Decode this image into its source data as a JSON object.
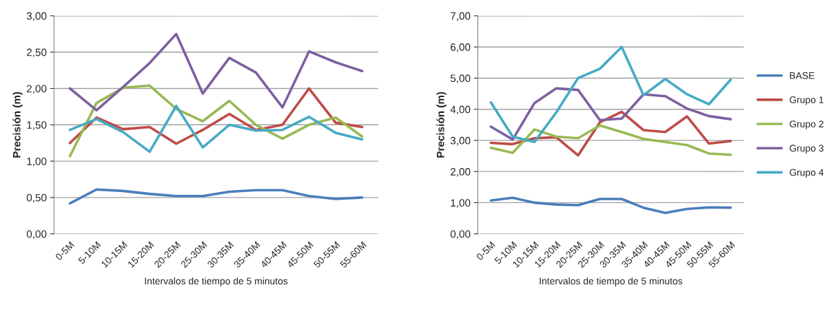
{
  "chart_data": [
    {
      "type": "line",
      "xlabel": "Intervalos de tiempo de 5 minutos",
      "ylabel": "Precisión (m)",
      "categories": [
        "0-5M",
        "5-10M",
        "10-15M",
        "15-20M",
        "20-25M",
        "25-30M",
        "30-35M",
        "35-40M",
        "40-45M",
        "45-50M",
        "50-55M",
        "55-60M"
      ],
      "series": [
        {
          "color": "#4a7ebb",
          "values": [
            0.42,
            0.61,
            0.59,
            0.55,
            0.52,
            0.52,
            0.58,
            0.6,
            0.6,
            0.52,
            0.48,
            0.5
          ]
        },
        {
          "color": "#be4b48",
          "values": [
            1.25,
            1.6,
            1.44,
            1.47,
            1.24,
            1.43,
            1.65,
            1.43,
            1.5,
            2.0,
            1.53,
            1.47
          ]
        },
        {
          "color": "#98b954",
          "values": [
            1.07,
            1.8,
            2.01,
            2.04,
            1.72,
            1.55,
            1.83,
            1.5,
            1.31,
            1.5,
            1.6,
            1.34
          ]
        },
        {
          "color": "#7d60a0",
          "values": [
            2.0,
            1.7,
            2.02,
            2.35,
            2.75,
            1.93,
            2.42,
            2.22,
            1.74,
            2.51,
            2.36,
            2.24
          ]
        },
        {
          "color": "#46aac5",
          "values": [
            1.43,
            1.58,
            1.4,
            1.13,
            1.76,
            1.19,
            1.5,
            1.42,
            1.43,
            1.61,
            1.39,
            1.3
          ]
        }
      ],
      "ylim": [
        0,
        3
      ],
      "yticks": [
        {
          "value": 0,
          "label": "0,00"
        },
        {
          "value": 0.5,
          "label": "0,50"
        },
        {
          "value": 1,
          "label": "1,00"
        },
        {
          "value": 1.5,
          "label": "1,50"
        },
        {
          "value": 2,
          "label": "2,00"
        },
        {
          "value": 2.5,
          "label": "2,50"
        },
        {
          "value": 3,
          "label": "3,00"
        }
      ],
      "grid": "y",
      "legend": false,
      "marker": "none",
      "line_style": "solid"
    },
    {
      "type": "line",
      "xlabel": "Intervalos de tiempo de 5 minutos",
      "ylabel": "Precisión (m)",
      "categories": [
        "0-5M",
        "5-10M",
        "10-15M",
        "15-20M",
        "20-25M",
        "25-30M",
        "30-35M",
        "35-40M",
        "40-45M",
        "45-50M",
        "50-55M",
        "55-60M"
      ],
      "series": [
        {
          "name": "BASE",
          "color": "#4a7ebb",
          "values": [
            1.07,
            1.16,
            1.0,
            0.94,
            0.92,
            1.12,
            1.12,
            0.84,
            0.67,
            0.8,
            0.85,
            0.84
          ]
        },
        {
          "name": "Grupo 1",
          "color": "#be4b48",
          "values": [
            2.92,
            2.88,
            3.07,
            3.1,
            2.52,
            3.58,
            3.92,
            3.33,
            3.27,
            3.77,
            2.9,
            2.98
          ]
        },
        {
          "name": "Grupo 2",
          "color": "#98b954",
          "values": [
            2.76,
            2.6,
            3.35,
            3.12,
            3.07,
            3.48,
            3.27,
            3.05,
            2.95,
            2.85,
            2.58,
            2.54
          ]
        },
        {
          "name": "Grupo 3",
          "color": "#7d60a0",
          "values": [
            3.44,
            3.03,
            4.2,
            4.67,
            4.62,
            3.65,
            3.7,
            4.48,
            4.42,
            4.02,
            3.78,
            3.68
          ]
        },
        {
          "name": "Grupo 4",
          "color": "#46aac5",
          "values": [
            4.22,
            3.12,
            2.95,
            3.9,
            5.0,
            5.3,
            6.0,
            4.45,
            4.97,
            4.48,
            4.16,
            4.95
          ]
        }
      ],
      "ylim": [
        0,
        7
      ],
      "yticks": [
        {
          "value": 0,
          "label": "0,00"
        },
        {
          "value": 1,
          "label": "1,00"
        },
        {
          "value": 2,
          "label": "2,00"
        },
        {
          "value": 3,
          "label": "3,00"
        },
        {
          "value": 4,
          "label": "4,00"
        },
        {
          "value": 5,
          "label": "5,00"
        },
        {
          "value": 6,
          "label": "6,00"
        },
        {
          "value": 7,
          "label": "7,00"
        }
      ],
      "grid": "y",
      "legend": "right",
      "marker": "none",
      "line_style": "solid"
    }
  ]
}
